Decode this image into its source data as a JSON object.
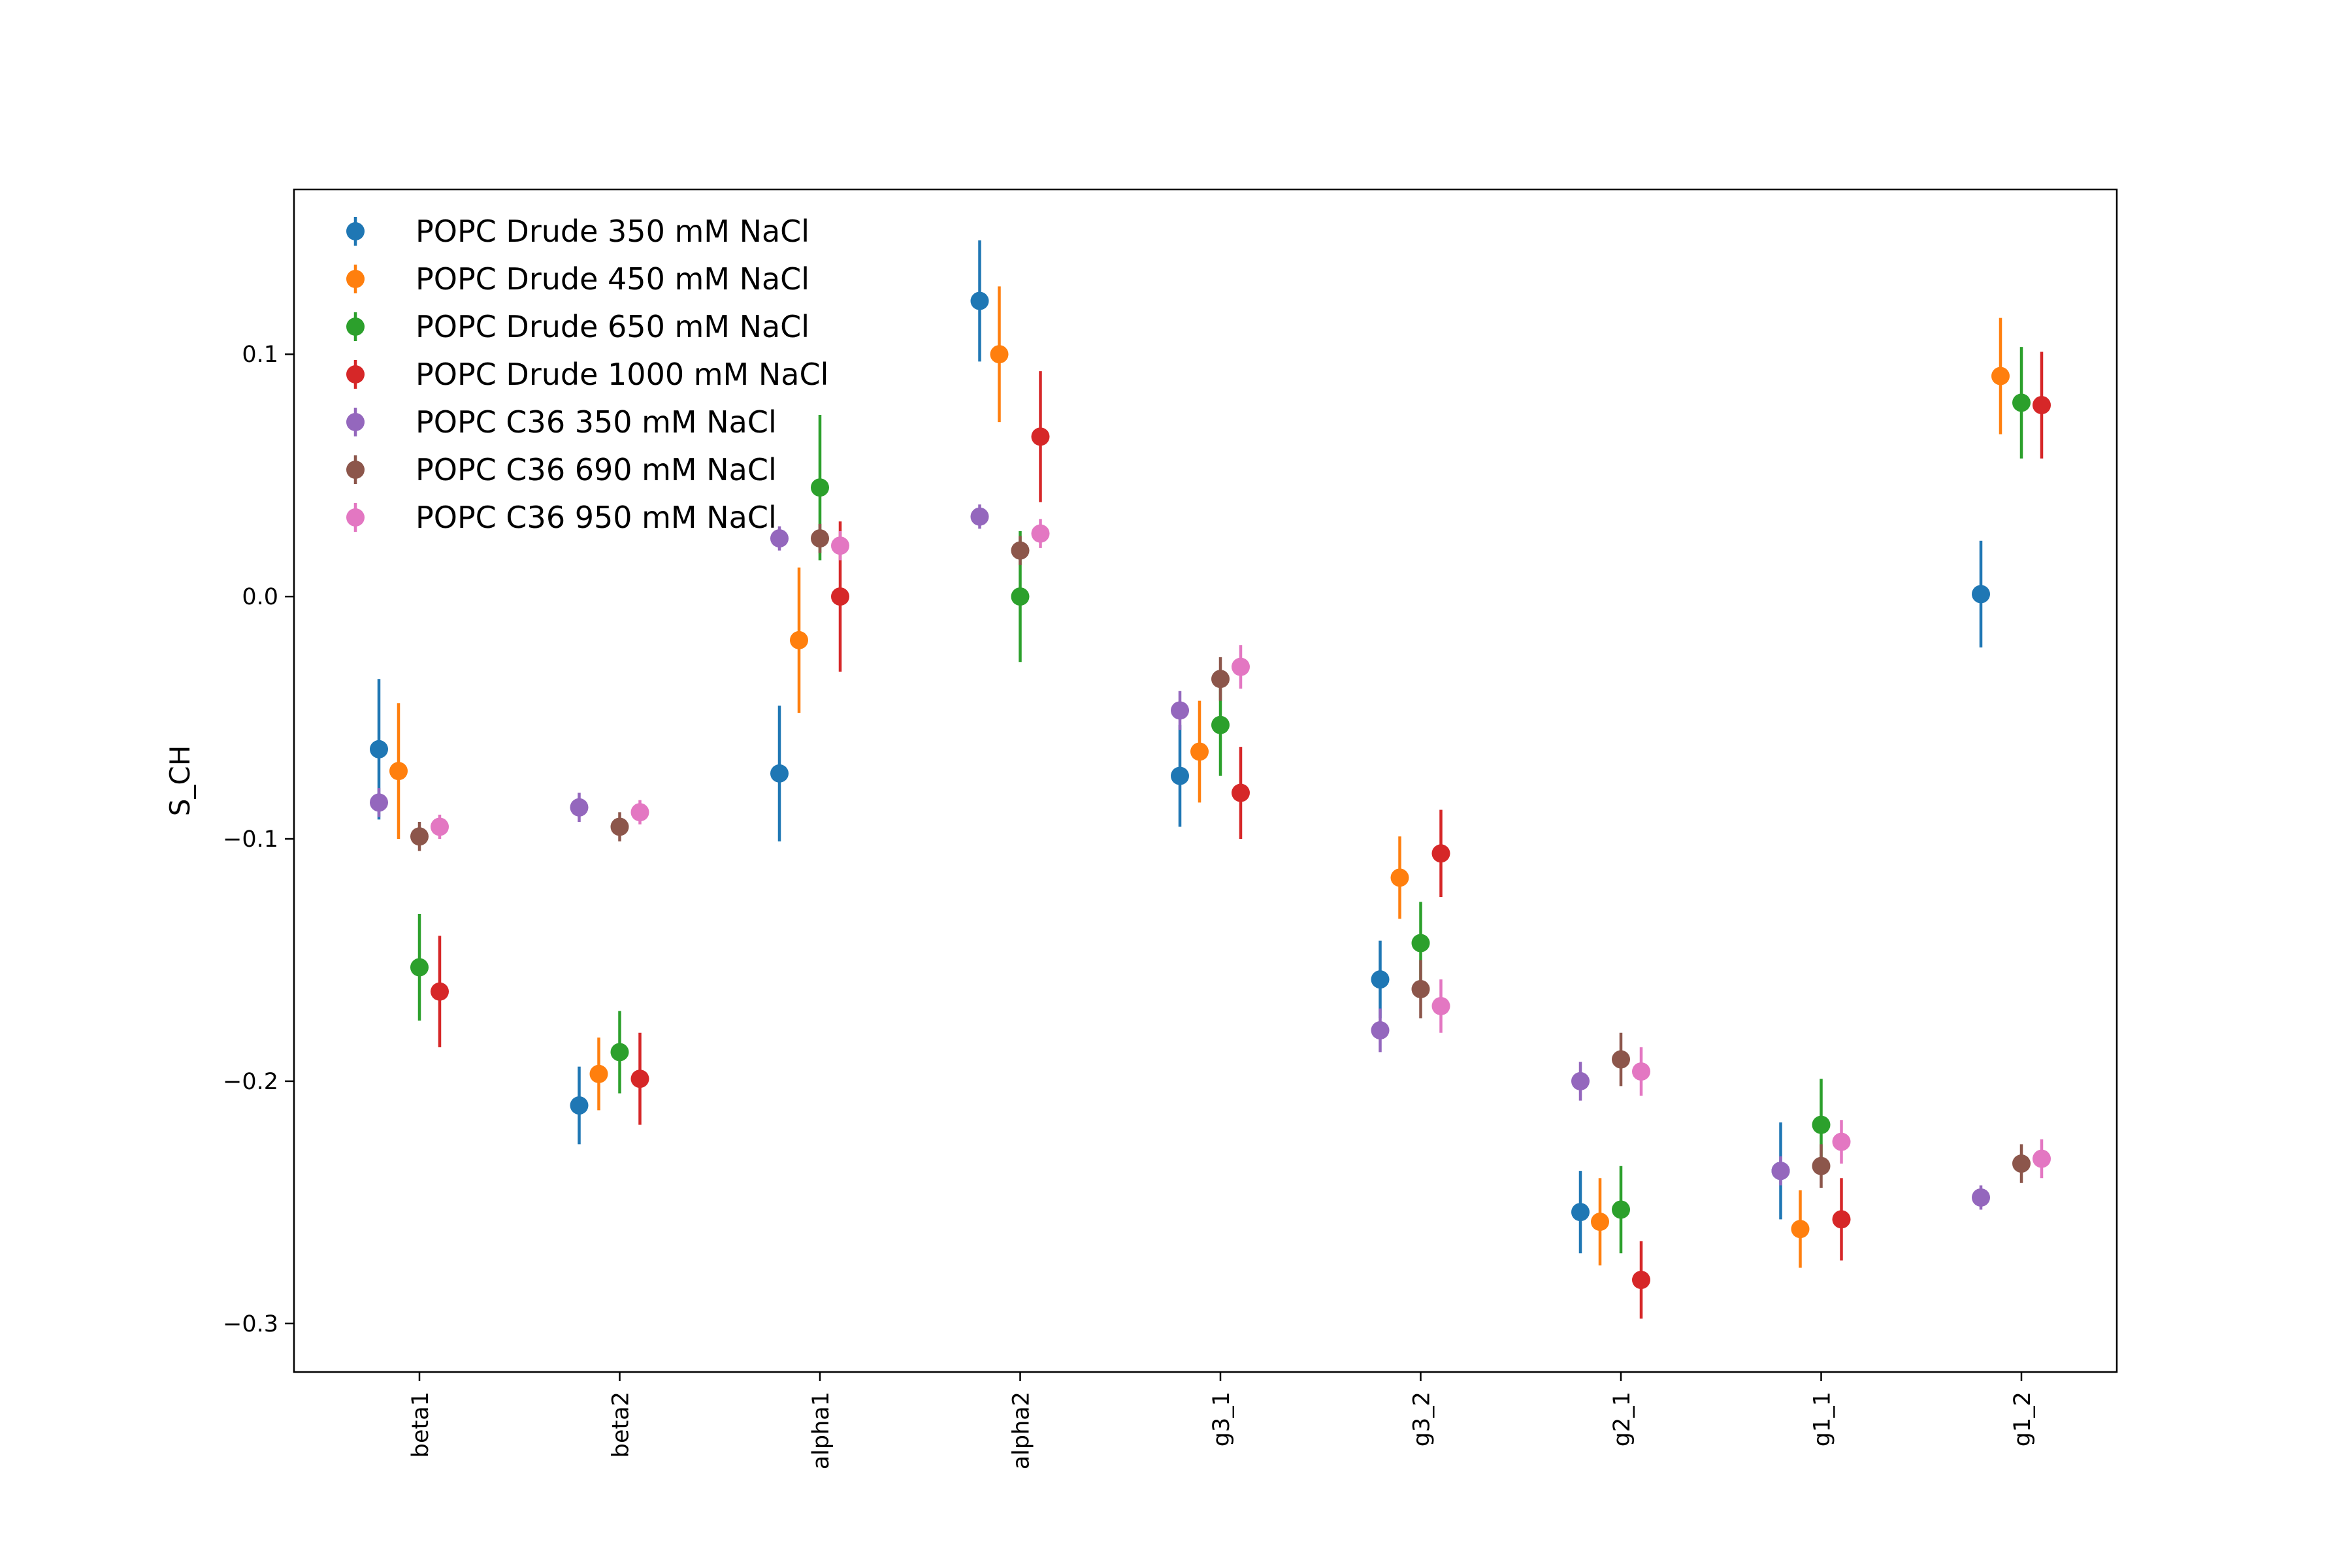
{
  "chart_data": {
    "type": "scatter",
    "title": "",
    "xlabel": "",
    "ylabel": "S_CH",
    "ylim": [
      -0.32,
      0.168
    ],
    "yticks": [
      {
        "value": 0.1,
        "label": "0.1"
      },
      {
        "value": 0.0,
        "label": "0.0"
      },
      {
        "value": -0.1,
        "label": "−0.1"
      },
      {
        "value": -0.2,
        "label": "−0.2"
      },
      {
        "value": -0.3,
        "label": "−0.3"
      }
    ],
    "categories": [
      "beta1",
      "beta2",
      "alpha1",
      "alpha2",
      "g3_1",
      "g3_2",
      "g2_1",
      "g1_1",
      "g1_2"
    ],
    "grid": false,
    "legend_position": "top-left",
    "series": [
      {
        "name": "POPC Drude 350 mM NaCl",
        "color": "#1f77b4",
        "values": [
          -0.063,
          -0.21,
          -0.073,
          0.122,
          -0.074,
          -0.158,
          -0.254,
          -0.237,
          0.001
        ],
        "errors": [
          0.029,
          0.016,
          0.028,
          0.025,
          0.021,
          0.016,
          0.017,
          0.02,
          0.022
        ]
      },
      {
        "name": "POPC Drude 450 mM NaCl",
        "color": "#ff7f0e",
        "values": [
          -0.072,
          -0.197,
          -0.018,
          0.1,
          -0.064,
          -0.116,
          -0.258,
          -0.261,
          0.091
        ],
        "errors": [
          0.028,
          0.015,
          0.03,
          0.028,
          0.021,
          0.017,
          0.018,
          0.016,
          0.024
        ]
      },
      {
        "name": "POPC Drude 650 mM NaCl",
        "color": "#2ca02c",
        "values": [
          -0.153,
          -0.188,
          0.045,
          0.0,
          -0.053,
          -0.143,
          -0.253,
          -0.218,
          0.08
        ],
        "errors": [
          0.022,
          0.017,
          0.03,
          0.027,
          0.021,
          0.017,
          0.018,
          0.019,
          0.023
        ]
      },
      {
        "name": "POPC Drude 1000 mM NaCl",
        "color": "#d62728",
        "values": [
          -0.163,
          -0.199,
          0.0,
          0.066,
          -0.081,
          -0.106,
          -0.282,
          -0.257,
          0.079
        ],
        "errors": [
          0.023,
          0.019,
          0.031,
          0.027,
          0.019,
          0.018,
          0.016,
          0.017,
          0.022
        ]
      },
      {
        "name": "POPC C36 350 mM NaCl",
        "color": "#9467bd",
        "values": [
          -0.085,
          -0.087,
          0.024,
          0.033,
          -0.047,
          -0.179,
          -0.2,
          -0.237,
          -0.248
        ],
        "errors": [
          0.006,
          0.006,
          0.005,
          0.005,
          0.008,
          0.009,
          0.008,
          0.006,
          0.005
        ]
      },
      {
        "name": "POPC C36 690 mM NaCl",
        "color": "#8c564b",
        "values": [
          -0.099,
          -0.095,
          0.024,
          0.019,
          -0.034,
          -0.162,
          -0.191,
          -0.235,
          -0.234
        ],
        "errors": [
          0.006,
          0.006,
          0.006,
          0.006,
          0.009,
          0.012,
          0.011,
          0.009,
          0.008
        ]
      },
      {
        "name": "POPC C36 950 mM NaCl",
        "color": "#e377c2",
        "values": [
          -0.095,
          -0.089,
          0.021,
          0.026,
          -0.029,
          -0.169,
          -0.196,
          -0.225,
          -0.232
        ],
        "errors": [
          0.005,
          0.005,
          0.006,
          0.006,
          0.009,
          0.011,
          0.01,
          0.009,
          0.008
        ]
      }
    ]
  }
}
